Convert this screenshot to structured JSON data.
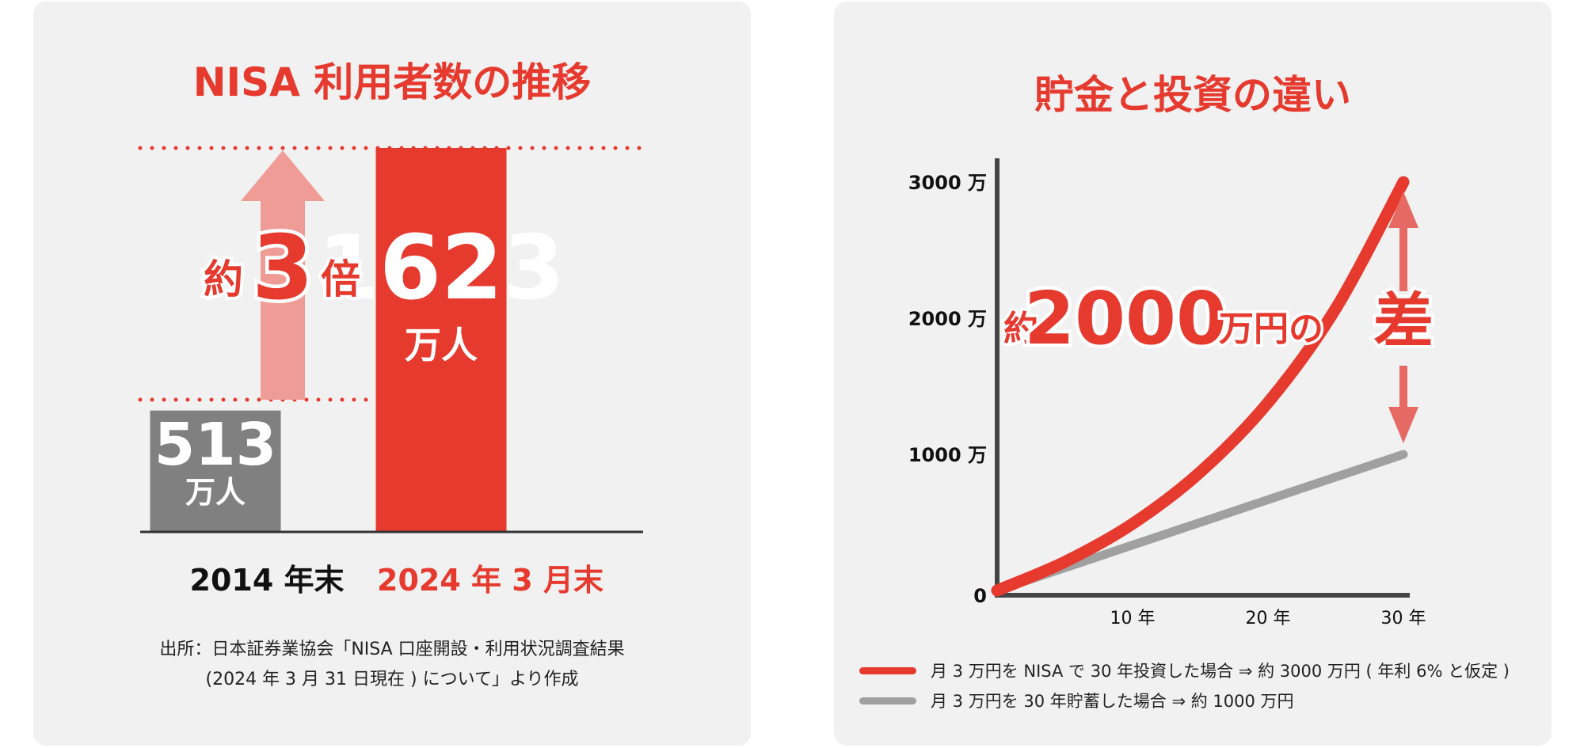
{
  "colors": {
    "accent": "#e63a2f",
    "accent_light": "#ef9c96",
    "gray_bar": "#808080",
    "gray_line": "#a0a0a0",
    "axis": "#333333"
  },
  "left": {
    "title": "NISA 利用者数の推移",
    "growth_prefix": "約",
    "growth_factor": "3",
    "growth_suffix": "倍",
    "source_line1": "出所：日本証券業協会「NISA 口座開設・利用状況調査結果",
    "source_line2": "(2024 年 3 月 31 日現在 ) について」より作成"
  },
  "right": {
    "title": "貯金と投資の違い",
    "diff_prefix": "約",
    "diff_value": "2000",
    "diff_unit": "万円の",
    "diff_word": "差",
    "legend": [
      {
        "label": "月 3 万円を NISA で 30 年投資した場合 ⇒ 約 3000 万円 ( 年利 6% と仮定 )",
        "color": "#e63a2f"
      },
      {
        "label": "月 3 万円を 30 年貯蓄した場合 ⇒ 約 1000 万円",
        "color": "#a0a0a0"
      }
    ]
  },
  "chart_data": [
    {
      "type": "bar",
      "title": "NISA 利用者数の推移",
      "categories": [
        "2014 年末",
        "2024 年 3 月末"
      ],
      "values": [
        513,
        1623
      ],
      "value_labels": [
        "513",
        "1623"
      ],
      "unit": "万人",
      "ylim": [
        0,
        1623
      ],
      "bar_colors": [
        "#808080",
        "#e63a2f"
      ]
    },
    {
      "type": "line",
      "title": "貯金と投資の違い",
      "x_ticks": [
        "10 年",
        "20 年",
        "30 年"
      ],
      "x_tick_values": [
        10,
        20,
        30
      ],
      "xlim": [
        0,
        30
      ],
      "y_ticks": [
        "0",
        "1000 万",
        "2000 万",
        "3000 万"
      ],
      "y_tick_values": [
        0,
        1000,
        2000,
        3000
      ],
      "ylim": [
        0,
        3000
      ],
      "series": [
        {
          "name": "月 3 万円を NISA で 30 年投資した場合 ⇒ 約 3000 万円 ( 年利 6% と仮定 )",
          "color": "#e63a2f",
          "x": [
            0,
            5,
            10,
            15,
            20,
            25,
            30
          ],
          "y": [
            0,
            210,
            490,
            870,
            1380,
            2070,
            3000
          ]
        },
        {
          "name": "月 3 万円を 30 年貯蓄した場合 ⇒ 約 1000 万円",
          "color": "#a0a0a0",
          "x": [
            0,
            30
          ],
          "y": [
            0,
            1000
          ]
        }
      ]
    }
  ]
}
